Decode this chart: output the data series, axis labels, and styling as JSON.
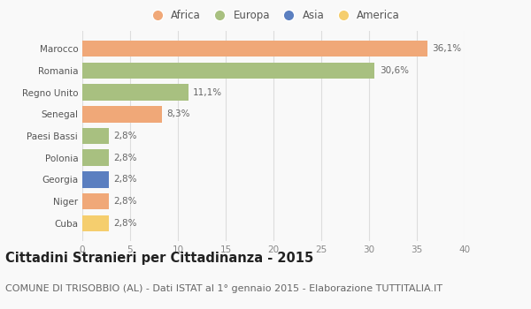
{
  "categories": [
    "Cuba",
    "Niger",
    "Georgia",
    "Polonia",
    "Paesi Bassi",
    "Senegal",
    "Regno Unito",
    "Romania",
    "Marocco"
  ],
  "values": [
    2.8,
    2.8,
    2.8,
    2.8,
    2.8,
    8.3,
    11.1,
    30.6,
    36.1
  ],
  "labels": [
    "2,8%",
    "2,8%",
    "2,8%",
    "2,8%",
    "2,8%",
    "8,3%",
    "11,1%",
    "30,6%",
    "36,1%"
  ],
  "colors": [
    "#F5CE6E",
    "#F0A878",
    "#5B7FC0",
    "#A8C080",
    "#A8C080",
    "#F0A878",
    "#A8C080",
    "#A8C080",
    "#F0A878"
  ],
  "legend_labels": [
    "Africa",
    "Europa",
    "Asia",
    "America"
  ],
  "legend_colors": [
    "#F0A878",
    "#A8C080",
    "#5B7FC0",
    "#F5CE6E"
  ],
  "xlim": [
    0,
    40
  ],
  "xticks": [
    0,
    5,
    10,
    15,
    20,
    25,
    30,
    35,
    40
  ],
  "title": "Cittadini Stranieri per Cittadinanza - 2015",
  "subtitle": "COMUNE DI TRISOBBIO (AL) - Dati ISTAT al 1° gennaio 2015 - Elaborazione TUTTITALIA.IT",
  "bg_color": "#f9f9f9",
  "grid_color": "#dddddd",
  "bar_height": 0.75,
  "title_fontsize": 10.5,
  "subtitle_fontsize": 8,
  "label_fontsize": 7.5,
  "tick_fontsize": 7.5,
  "legend_fontsize": 8.5
}
